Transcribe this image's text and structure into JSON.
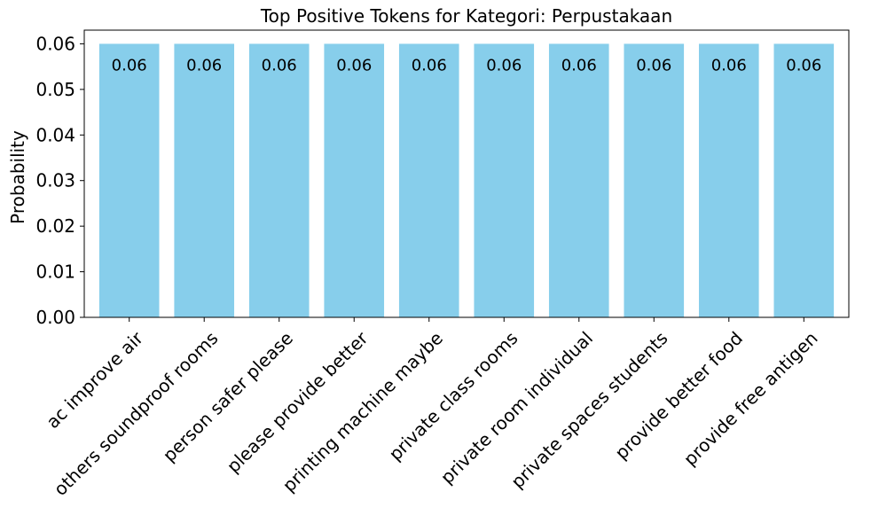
{
  "chart_data": {
    "type": "bar",
    "title": "Top Positive Tokens for Kategori: Perpustakaan",
    "xlabel": "",
    "ylabel": "Probability",
    "categories": [
      "ac improve air",
      "others soundproof rooms",
      "person safer please",
      "please provide better",
      "printing machine maybe",
      "private class rooms",
      "private room individual",
      "private spaces students",
      "provide better food",
      "provide free antigen"
    ],
    "values": [
      0.06,
      0.06,
      0.06,
      0.06,
      0.06,
      0.06,
      0.06,
      0.06,
      0.06,
      0.06
    ],
    "data_labels": [
      "0.06",
      "0.06",
      "0.06",
      "0.06",
      "0.06",
      "0.06",
      "0.06",
      "0.06",
      "0.06",
      "0.06"
    ],
    "ylim": [
      0,
      0.063
    ],
    "yticks": [
      0.0,
      0.01,
      0.02,
      0.03,
      0.04,
      0.05,
      0.06
    ],
    "ytick_labels": [
      "0.00",
      "0.01",
      "0.02",
      "0.03",
      "0.04",
      "0.05",
      "0.06"
    ],
    "bar_color": "#87ceeb",
    "grid": false,
    "legend": "none"
  }
}
